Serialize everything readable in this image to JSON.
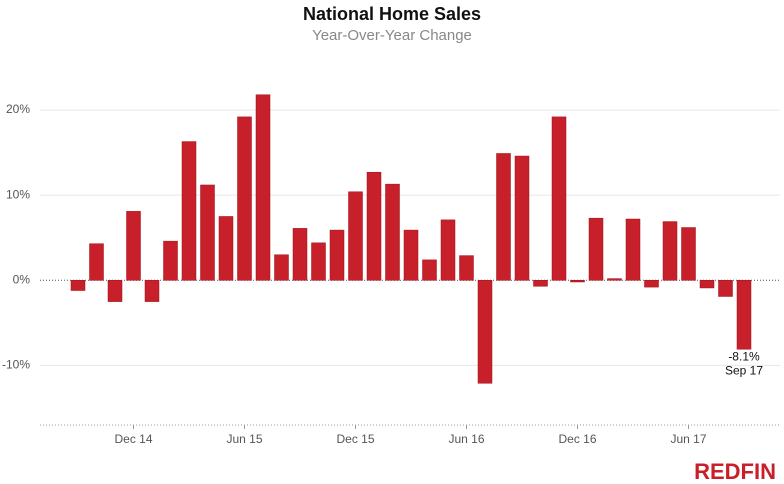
{
  "chart_data": {
    "type": "bar",
    "title": "National Home Sales",
    "subtitle": "Year-Over-Year Change",
    "categories": [
      null,
      null,
      null,
      "Dec 14",
      null,
      null,
      null,
      null,
      null,
      "Jun 15",
      null,
      null,
      null,
      null,
      null,
      "Dec 15",
      null,
      null,
      null,
      null,
      null,
      "Jun 16",
      null,
      null,
      null,
      null,
      null,
      "Dec 16",
      null,
      null,
      null,
      null,
      null,
      "Jun 17",
      null,
      null,
      null
    ],
    "values": [
      -1.2,
      4.3,
      -2.5,
      8.1,
      -2.5,
      4.6,
      16.3,
      11.2,
      7.5,
      19.2,
      21.8,
      3.0,
      6.1,
      4.4,
      5.9,
      10.4,
      12.7,
      11.3,
      5.9,
      2.4,
      7.1,
      2.9,
      -12.1,
      14.9,
      14.6,
      -0.7,
      19.2,
      -0.2,
      7.3,
      0.2,
      7.2,
      -0.8,
      6.9,
      6.2,
      -0.9,
      -1.9,
      -8.1
    ],
    "value_labels": [
      null,
      null,
      null,
      null,
      null,
      null,
      null,
      null,
      null,
      null,
      null,
      null,
      null,
      null,
      null,
      null,
      null,
      null,
      null,
      null,
      null,
      null,
      null,
      null,
      null,
      null,
      null,
      null,
      null,
      null,
      null,
      null,
      null,
      null,
      null,
      null,
      "-8.1%"
    ],
    "annotation": "Sep 17",
    "color": "#c8202a",
    "ylim": [
      -17,
      26
    ],
    "yticks": [
      {
        "value": -10,
        "label": "-10%"
      },
      {
        "value": 0,
        "label": "0%"
      },
      {
        "value": 10,
        "label": "10%"
      },
      {
        "value": 20,
        "label": "20%"
      }
    ],
    "grid": true,
    "logo": "REDFIN"
  }
}
